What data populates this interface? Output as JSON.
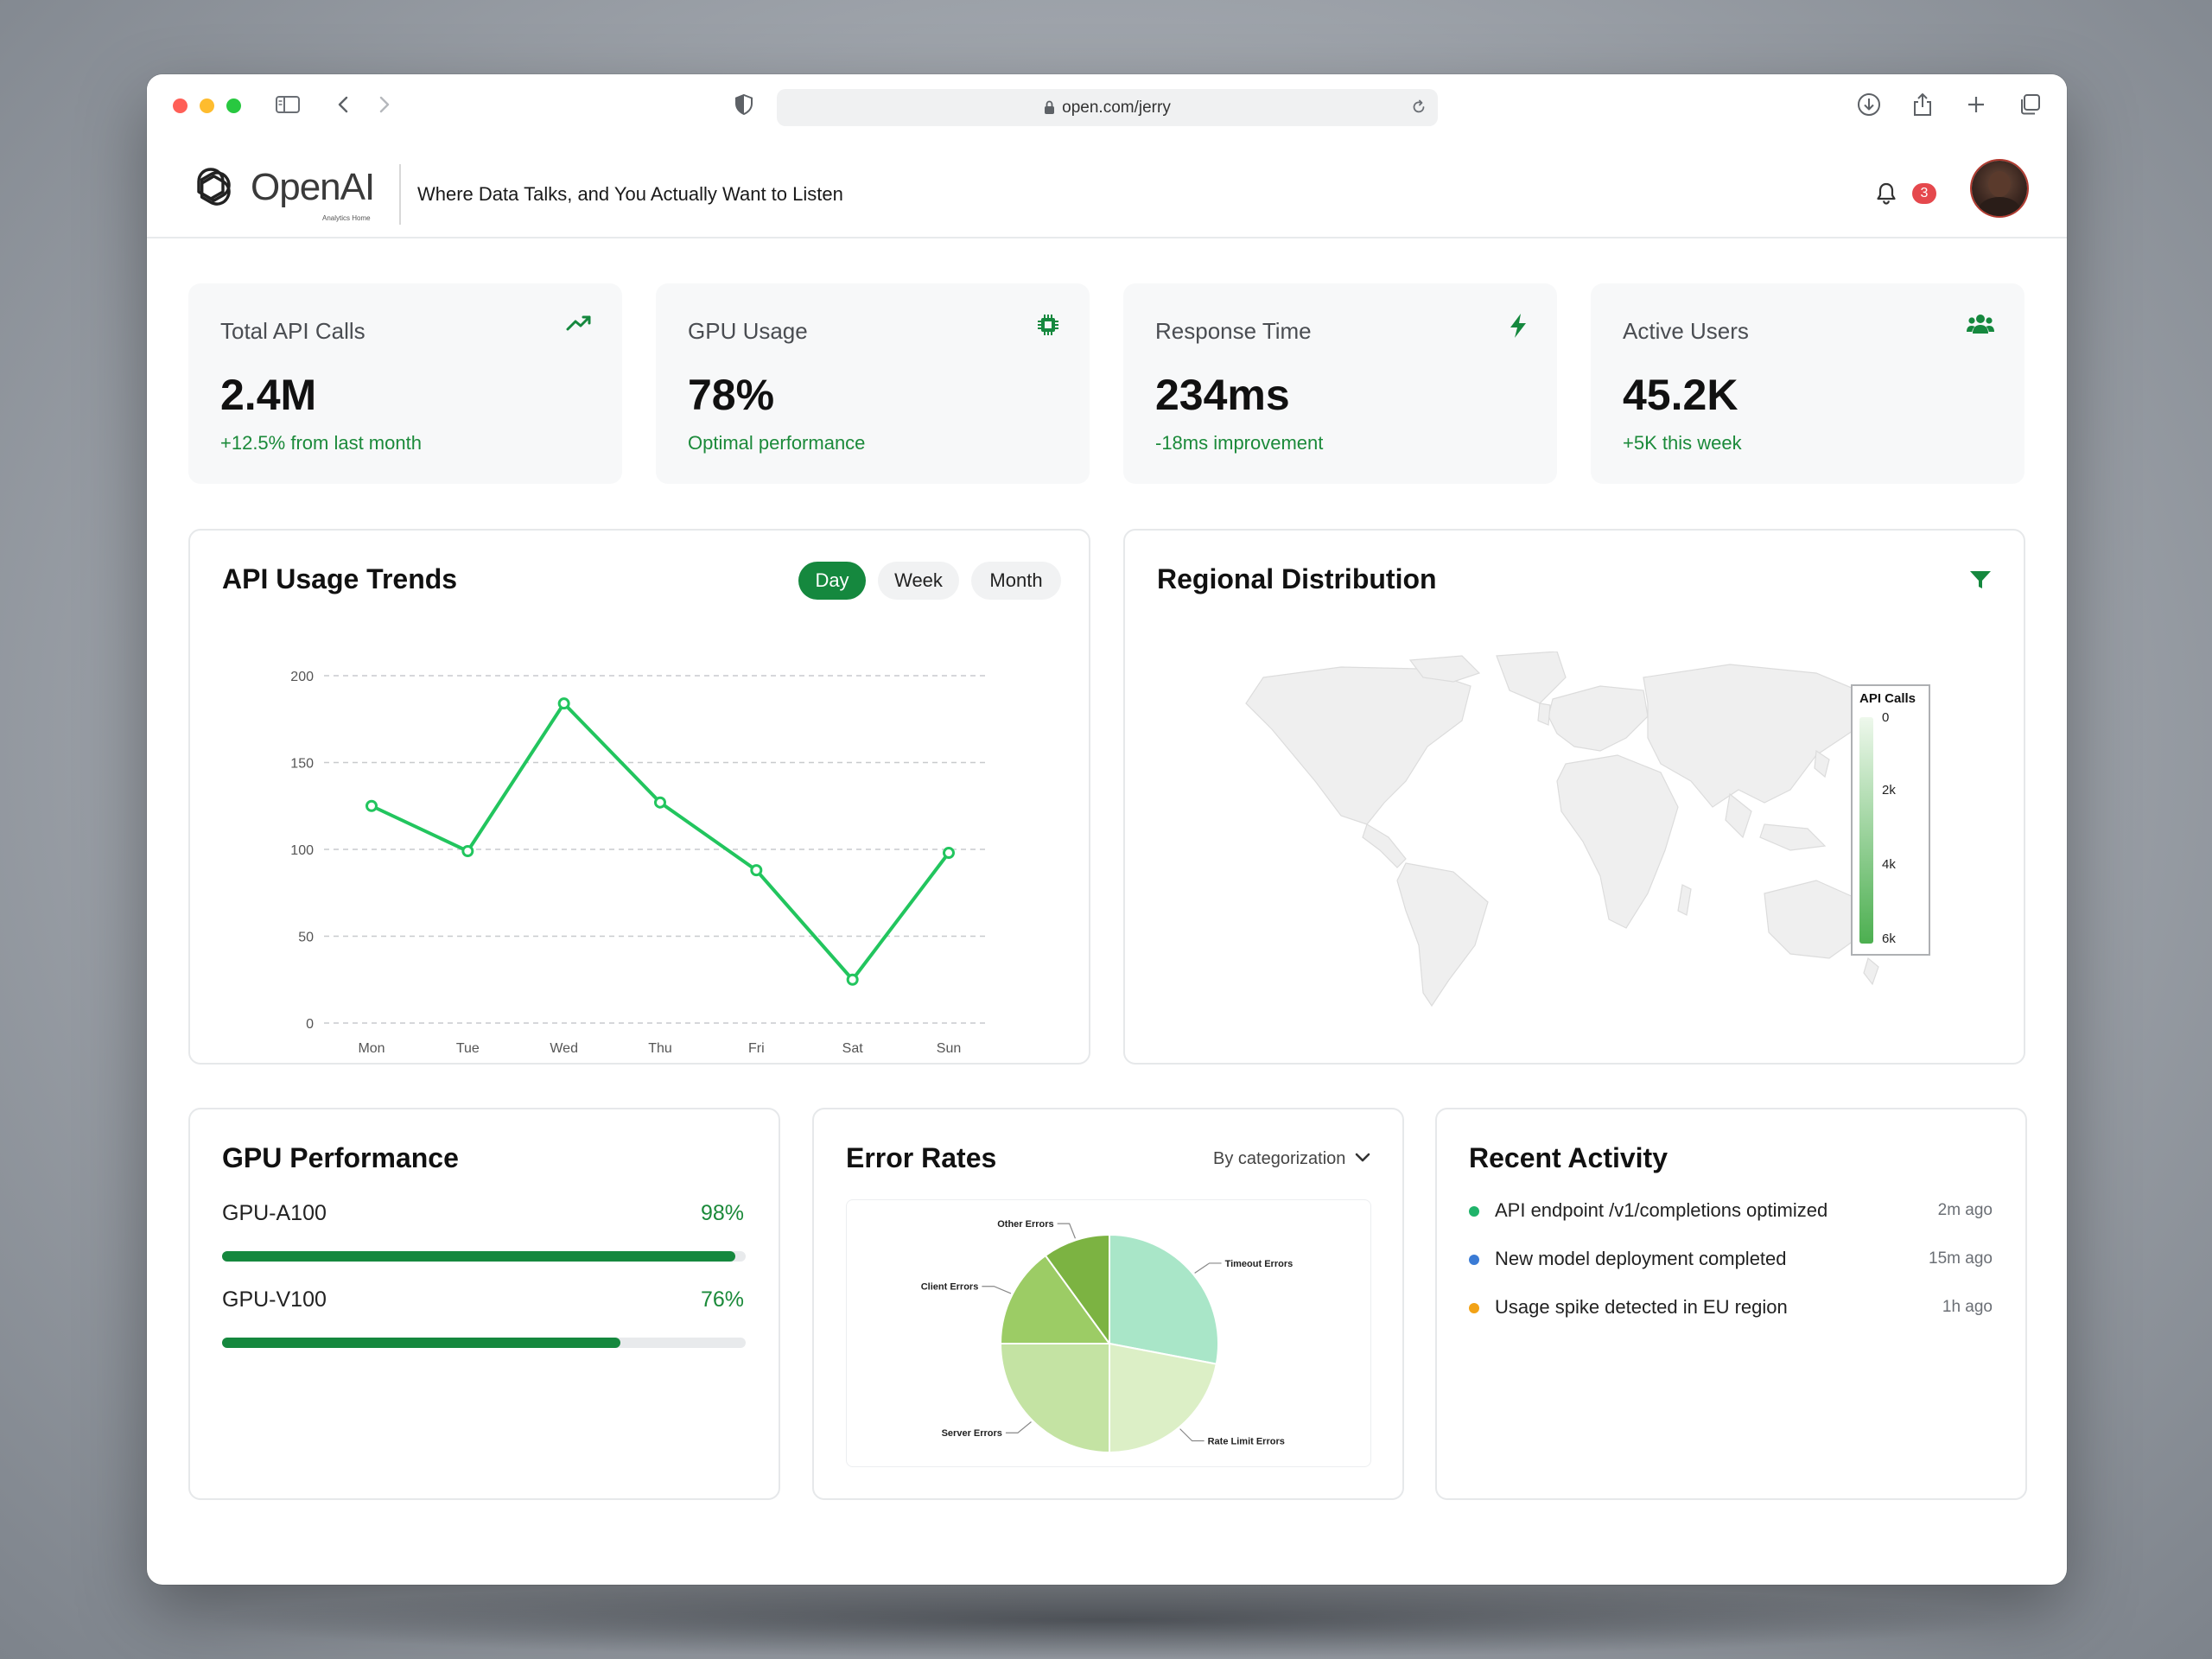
{
  "browser": {
    "url": "open.com/jerry"
  },
  "header": {
    "brand": "OpenAI",
    "brand_sub": "Analytics Home",
    "tagline": "Where Data Talks, and You Actually Want to Listen",
    "notification_count": "3"
  },
  "stats": [
    {
      "label": "Total API Calls",
      "value": "2.4M",
      "sub": "+12.5% from last month",
      "icon": "trending-up-icon"
    },
    {
      "label": "GPU Usage",
      "value": "78%",
      "sub": "Optimal performance",
      "icon": "chip-icon"
    },
    {
      "label": "Response Time",
      "value": "234ms",
      "sub": "-18ms improvement",
      "icon": "bolt-icon"
    },
    {
      "label": "Active Users",
      "value": "45.2K",
      "sub": "+5K this week",
      "icon": "users-icon"
    }
  ],
  "usage": {
    "title": "API Usage Trends",
    "tabs": [
      "Day",
      "Week",
      "Month"
    ],
    "active_tab": "Day"
  },
  "regional": {
    "title": "Regional Distribution",
    "legend_title": "API Calls",
    "legend_ticks": [
      "0",
      "2k",
      "4k",
      "6k"
    ]
  },
  "gpu": {
    "title": "GPU Performance",
    "items": [
      {
        "name": "GPU-A100",
        "value_label": "98%",
        "value": 0.98
      },
      {
        "name": "GPU-V100",
        "value_label": "76%",
        "value": 0.76
      }
    ]
  },
  "errors": {
    "title": "Error Rates",
    "dropdown": "By categorization"
  },
  "activity": {
    "title": "Recent Activity",
    "items": [
      {
        "text": "API endpoint /v1/completions optimized",
        "time": "2m ago",
        "color": "#1fb36a"
      },
      {
        "text": "New model deployment completed",
        "time": "15m ago",
        "color": "#3a7bd5"
      },
      {
        "text": "Usage spike detected in EU region",
        "time": "1h ago",
        "color": "#f2a216"
      }
    ]
  },
  "chart_data": [
    {
      "type": "line",
      "title": "API Usage Trends",
      "categories": [
        "Mon",
        "Tue",
        "Wed",
        "Thu",
        "Fri",
        "Sat",
        "Sun"
      ],
      "values": [
        125,
        99,
        184,
        127,
        88,
        25,
        98
      ],
      "yticks": [
        "0",
        "50",
        "100",
        "150",
        "200"
      ],
      "ylim": [
        0,
        200
      ],
      "grid": true,
      "color": "#22c55e"
    },
    {
      "type": "pie",
      "title": "Error Rates",
      "labels": [
        "Timeout Errors",
        "Rate Limit Errors",
        "Server Errors",
        "Client Errors",
        "Other Errors"
      ],
      "values": [
        28,
        22,
        25,
        15,
        10
      ],
      "colors": [
        "#a9e6c8",
        "#dcefc6",
        "#c4e3a3",
        "#9ccc65",
        "#7cb342"
      ]
    }
  ]
}
